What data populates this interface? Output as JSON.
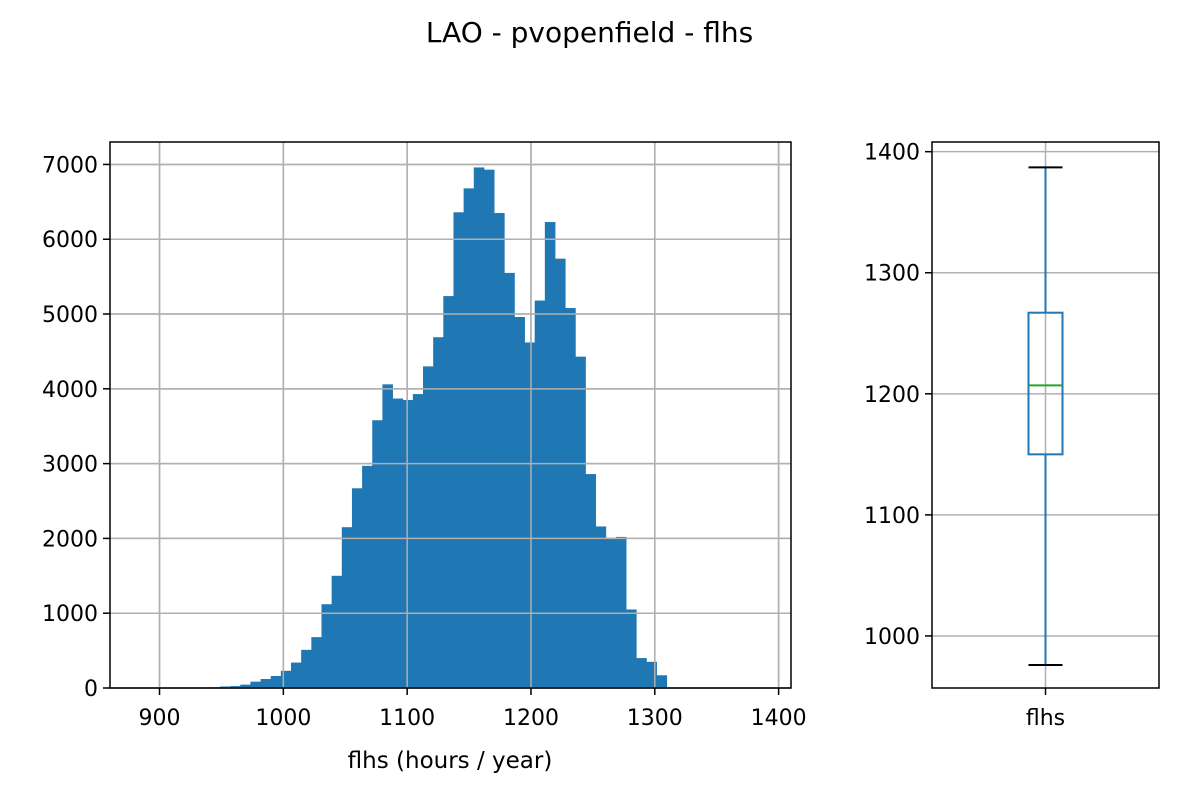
{
  "figure": {
    "title": "LAO - pvopenfield - flhs"
  },
  "chart_data": [
    {
      "type": "bar",
      "subtype": "histogram",
      "xlabel": "flhs (hours / year)",
      "ylabel": "",
      "xlim": [
        860,
        1410
      ],
      "ylim": [
        0,
        7300
      ],
      "bin_width": 8.2,
      "grid": true,
      "x_ticks": [
        {
          "value": 900,
          "label": "900"
        },
        {
          "value": 1000,
          "label": "1000"
        },
        {
          "value": 1100,
          "label": "1100"
        },
        {
          "value": 1200,
          "label": "1200"
        },
        {
          "value": 1300,
          "label": "1300"
        },
        {
          "value": 1400,
          "label": "1400"
        }
      ],
      "y_ticks": [
        {
          "value": 0,
          "label": "0"
        },
        {
          "value": 1000,
          "label": "1000"
        },
        {
          "value": 2000,
          "label": "2000"
        },
        {
          "value": 3000,
          "label": "3000"
        },
        {
          "value": 4000,
          "label": "4000"
        },
        {
          "value": 5000,
          "label": "5000"
        },
        {
          "value": 6000,
          "label": "6000"
        },
        {
          "value": 7000,
          "label": "7000"
        }
      ],
      "bins": [
        {
          "x": 875,
          "count": 5
        },
        {
          "x": 883.2,
          "count": 5
        },
        {
          "x": 891.4,
          "count": 5
        },
        {
          "x": 899.6,
          "count": 5
        },
        {
          "x": 907.8,
          "count": 5
        },
        {
          "x": 916,
          "count": 5
        },
        {
          "x": 924.2,
          "count": 5
        },
        {
          "x": 932.4,
          "count": 5
        },
        {
          "x": 940.6,
          "count": 10
        },
        {
          "x": 948.8,
          "count": 20
        },
        {
          "x": 957,
          "count": 25
        },
        {
          "x": 965.2,
          "count": 45
        },
        {
          "x": 973.4,
          "count": 85
        },
        {
          "x": 981.6,
          "count": 120
        },
        {
          "x": 989.8,
          "count": 160
        },
        {
          "x": 998,
          "count": 230
        },
        {
          "x": 1006.2,
          "count": 340
        },
        {
          "x": 1014.4,
          "count": 510
        },
        {
          "x": 1022.6,
          "count": 680
        },
        {
          "x": 1030.8,
          "count": 1120
        },
        {
          "x": 1039,
          "count": 1500
        },
        {
          "x": 1047.2,
          "count": 2150
        },
        {
          "x": 1055.4,
          "count": 2670
        },
        {
          "x": 1063.6,
          "count": 2970
        },
        {
          "x": 1071.8,
          "count": 3580
        },
        {
          "x": 1080,
          "count": 4060
        },
        {
          "x": 1088.2,
          "count": 3870
        },
        {
          "x": 1096.4,
          "count": 3850
        },
        {
          "x": 1104.6,
          "count": 3930
        },
        {
          "x": 1112.8,
          "count": 4300
        },
        {
          "x": 1121,
          "count": 4690
        },
        {
          "x": 1129.2,
          "count": 5240
        },
        {
          "x": 1137.4,
          "count": 6360
        },
        {
          "x": 1145.6,
          "count": 6680
        },
        {
          "x": 1153.8,
          "count": 6960
        },
        {
          "x": 1162,
          "count": 6930
        },
        {
          "x": 1170.2,
          "count": 6350
        },
        {
          "x": 1178.4,
          "count": 5550
        },
        {
          "x": 1186.6,
          "count": 4960
        },
        {
          "x": 1194.8,
          "count": 4620
        },
        {
          "x": 1203,
          "count": 5180
        },
        {
          "x": 1211.2,
          "count": 6230
        },
        {
          "x": 1219.4,
          "count": 5740
        },
        {
          "x": 1227.6,
          "count": 5080
        },
        {
          "x": 1235.8,
          "count": 4430
        },
        {
          "x": 1244,
          "count": 2860
        },
        {
          "x": 1252.2,
          "count": 2160
        },
        {
          "x": 1260.4,
          "count": 2000
        },
        {
          "x": 1268.6,
          "count": 2020
        },
        {
          "x": 1276.8,
          "count": 1050
        },
        {
          "x": 1285,
          "count": 400
        },
        {
          "x": 1293.2,
          "count": 350
        },
        {
          "x": 1301.4,
          "count": 170
        }
      ],
      "color": "#1f77b4"
    },
    {
      "type": "box",
      "category": "flhs",
      "ylim": [
        957,
        1408
      ],
      "grid": true,
      "y_ticks": [
        {
          "value": 1000,
          "label": "1000"
        },
        {
          "value": 1100,
          "label": "1100"
        },
        {
          "value": 1200,
          "label": "1200"
        },
        {
          "value": 1300,
          "label": "1300"
        },
        {
          "value": 1400,
          "label": "1400"
        }
      ],
      "whisker_low": 976,
      "q1": 1150,
      "median": 1207,
      "q3": 1267,
      "whisker_high": 1387,
      "box_color": "#1f77b4",
      "median_color": "#2ca02c"
    }
  ]
}
